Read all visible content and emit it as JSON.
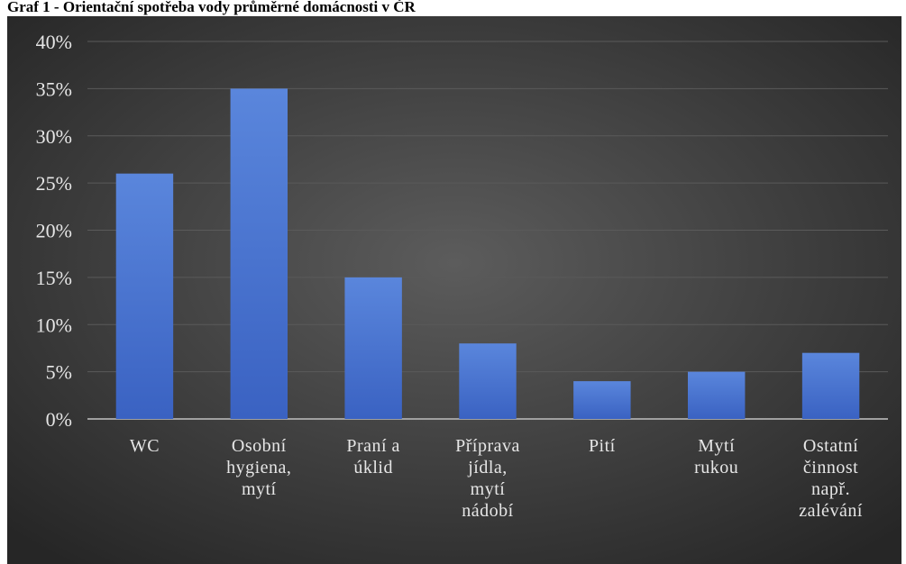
{
  "chart_data": {
    "type": "bar",
    "title": "Graf 1 - Orientační spotřeba vody průměrné domácnosti v ČR",
    "categories": [
      "WC",
      "Osobní hygiena, mytí",
      "Praní a úklid",
      "Příprava jídla, mytí nádobí",
      "Pití",
      "Mytí rukou",
      "Ostatní činnost např. zalévání"
    ],
    "values": [
      26,
      35,
      15,
      8,
      4,
      5,
      7
    ],
    "color": "#4674d3",
    "ylim": [
      0,
      40
    ],
    "yticks": [
      {
        "value": 0,
        "label": "0%"
      },
      {
        "value": 5,
        "label": "5%"
      },
      {
        "value": 10,
        "label": "10%"
      },
      {
        "value": 15,
        "label": "15%"
      },
      {
        "value": 20,
        "label": "20%"
      },
      {
        "value": 25,
        "label": "25%"
      },
      {
        "value": 30,
        "label": "30%"
      },
      {
        "value": 35,
        "label": "35%"
      },
      {
        "value": 40,
        "label": "40%"
      }
    ],
    "grid": true
  }
}
